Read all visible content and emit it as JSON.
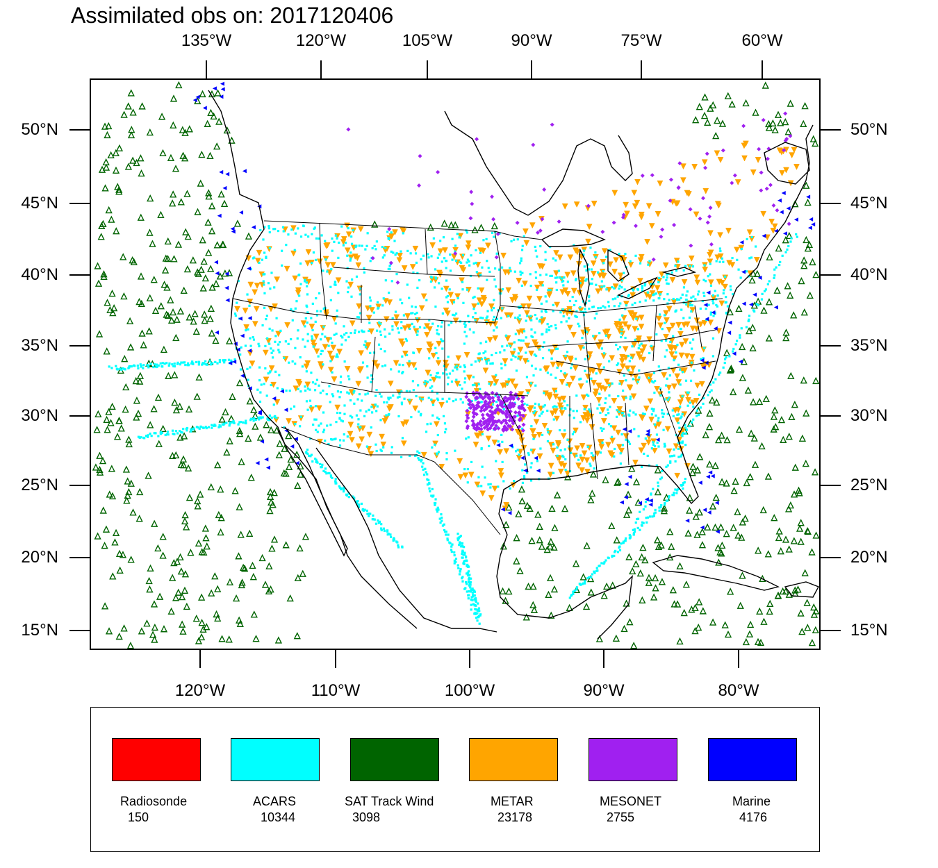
{
  "title": "Assimilated obs on: 2017120406",
  "axes": {
    "top_lon": [
      "135°W",
      "120°W",
      "105°W",
      "90°W",
      "75°W",
      "60°W"
    ],
    "bottom_lon": [
      "120°W",
      "110°W",
      "100°W",
      "90°W",
      "80°W"
    ],
    "left_lat": [
      "50°N",
      "45°N",
      "40°N",
      "35°N",
      "30°N",
      "25°N",
      "20°N",
      "15°N"
    ],
    "right_lat": [
      "50°N",
      "45°N",
      "40°N",
      "35°N",
      "30°N",
      "25°N",
      "20°N",
      "15°N"
    ]
  },
  "legend": {
    "items": [
      {
        "name": "Radiosonde",
        "count": "150",
        "color": "#ff0000"
      },
      {
        "name": "ACARS",
        "count": "10344",
        "color": "#00ffff"
      },
      {
        "name": "SAT Track Wind",
        "count": "3098",
        "color": "#006400"
      },
      {
        "name": "METAR",
        "count": "23178",
        "color": "#ffa500"
      },
      {
        "name": "MESONET",
        "count": "2755",
        "color": "#a020f0"
      },
      {
        "name": "Marine",
        "count": "4176",
        "color": "#0000ff"
      }
    ]
  },
  "colors": {
    "acars": "#00ffff",
    "sat": "#006400",
    "metar": "#ffa500",
    "mesonet": "#a020f0",
    "marine": "#0000ff",
    "radiosonde": "#ff0000"
  }
}
